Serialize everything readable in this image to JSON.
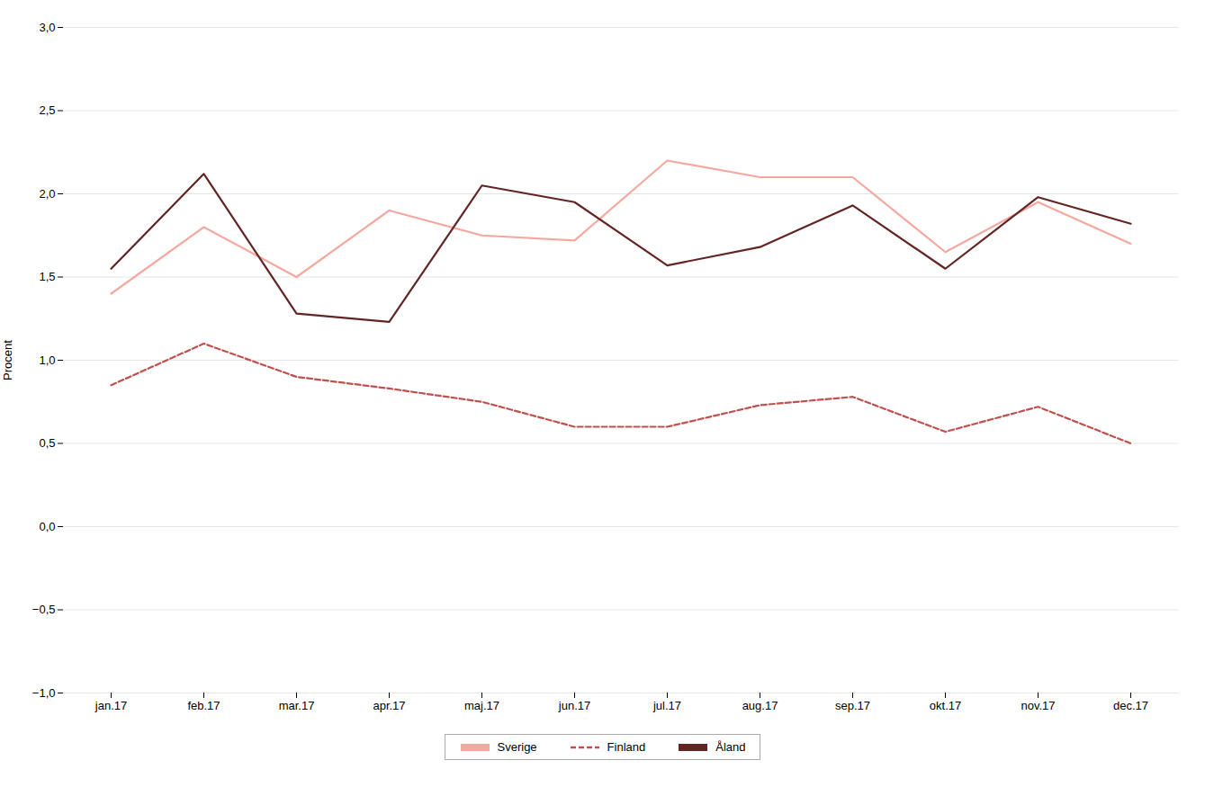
{
  "chart_data": {
    "type": "line",
    "categories": [
      "jan.17",
      "feb.17",
      "mar.17",
      "apr.17",
      "maj.17",
      "jun.17",
      "jul.17",
      "aug.17",
      "sep.17",
      "okt.17",
      "nov.17",
      "dec.17"
    ],
    "series": [
      {
        "name": "Sverige",
        "color": "#f4a8a0",
        "line_style": "solid",
        "values": [
          1.4,
          1.8,
          1.5,
          1.9,
          1.75,
          1.72,
          2.2,
          2.1,
          2.1,
          1.65,
          1.95,
          1.7
        ]
      },
      {
        "name": "Finland",
        "color": "#c0504d",
        "line_style": "dashed",
        "values": [
          0.85,
          1.1,
          0.9,
          0.83,
          0.75,
          0.6,
          0.6,
          0.73,
          0.78,
          0.57,
          0.72,
          0.5
        ]
      },
      {
        "name": "Åland",
        "color": "#632523",
        "line_style": "solid",
        "values": [
          1.55,
          2.12,
          1.28,
          1.23,
          2.05,
          1.95,
          1.57,
          1.68,
          1.93,
          1.55,
          1.98,
          1.82
        ]
      }
    ],
    "ylabel": "Procent",
    "ylim": [
      -1.0,
      3.0
    ],
    "yticks": [
      {
        "value": -1.0,
        "label": "−1,0"
      },
      {
        "value": -0.5,
        "label": "−0,5"
      },
      {
        "value": 0.0,
        "label": "0,0"
      },
      {
        "value": 0.5,
        "label": "0,5"
      },
      {
        "value": 1.0,
        "label": "1,0"
      },
      {
        "value": 1.5,
        "label": "1,5"
      },
      {
        "value": 2.0,
        "label": "2,0"
      },
      {
        "value": 2.5,
        "label": "2,5"
      },
      {
        "value": 3.0,
        "label": "3,0"
      }
    ],
    "grid": "y",
    "legend": "bottom"
  }
}
